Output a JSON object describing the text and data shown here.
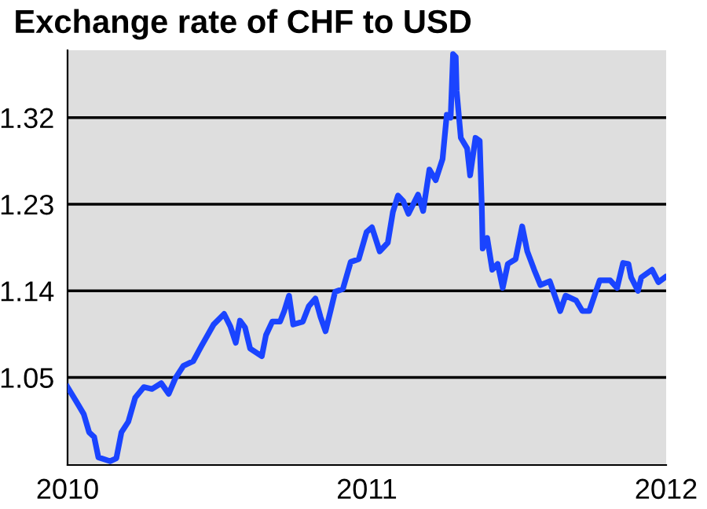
{
  "chart_data": {
    "type": "line",
    "title": "Exchange rate of CHF to USD",
    "color": "#1a44ff",
    "grid": "y",
    "marker": "none",
    "line_style": "solid",
    "x": [
      2010.0,
      2010.037,
      2010.054,
      2010.072,
      2010.089,
      2010.103,
      2010.142,
      2010.163,
      2010.18,
      2010.203,
      2010.226,
      2010.255,
      2010.282,
      2010.313,
      2010.338,
      2010.36,
      2010.387,
      2010.42,
      2010.448,
      2010.488,
      2010.523,
      2010.544,
      2010.562,
      2010.576,
      2010.593,
      2010.61,
      2010.649,
      2010.663,
      2010.684,
      2010.71,
      2010.724,
      2010.74,
      2010.754,
      2010.786,
      2010.806,
      2010.828,
      2010.845,
      2010.862,
      2010.88,
      2010.894,
      2010.92,
      2010.946,
      2010.973,
      2010.999,
      2011.017,
      2011.043,
      2011.07,
      2011.087,
      2011.104,
      2011.122,
      2011.139,
      2011.171,
      2011.188,
      2011.209,
      2011.23,
      2011.253,
      2011.267,
      2011.28,
      2011.288,
      2011.297,
      2011.3,
      2011.314,
      2011.335,
      2011.345,
      2011.363,
      2011.377,
      2011.384,
      2011.387,
      2011.402,
      2011.419,
      2011.437,
      2011.454,
      2011.471,
      2011.497,
      2011.519,
      2011.536,
      2011.559,
      2011.58,
      2011.611,
      2011.646,
      2011.664,
      2011.699,
      2011.72,
      2011.743,
      2011.778,
      2011.813,
      2011.836,
      2011.856,
      2011.874,
      2011.883,
      2011.906,
      2011.917,
      2011.953,
      2011.974,
      2011.996
    ],
    "values": [
      1.04,
      1.021,
      1.012,
      0.993,
      0.988,
      0.967,
      0.963,
      0.966,
      0.993,
      1.004,
      1.029,
      1.04,
      1.038,
      1.044,
      1.033,
      1.049,
      1.062,
      1.067,
      1.083,
      1.105,
      1.116,
      1.103,
      1.086,
      1.109,
      1.102,
      1.08,
      1.072,
      1.094,
      1.108,
      1.108,
      1.119,
      1.135,
      1.105,
      1.108,
      1.124,
      1.132,
      1.113,
      1.098,
      1.121,
      1.139,
      1.142,
      1.17,
      1.173,
      1.201,
      1.206,
      1.181,
      1.19,
      1.222,
      1.239,
      1.233,
      1.22,
      1.24,
      1.223,
      1.266,
      1.255,
      1.277,
      1.323,
      1.32,
      1.386,
      1.383,
      1.348,
      1.299,
      1.288,
      1.26,
      1.299,
      1.296,
      1.228,
      1.184,
      1.195,
      1.162,
      1.168,
      1.143,
      1.168,
      1.173,
      1.207,
      1.181,
      1.162,
      1.146,
      1.15,
      1.119,
      1.135,
      1.13,
      1.119,
      1.119,
      1.151,
      1.151,
      1.143,
      1.169,
      1.168,
      1.154,
      1.14,
      1.154,
      1.162,
      1.149,
      1.154
    ],
    "xlim": [
      2010,
      2012
    ],
    "xticks": [
      2010,
      2011,
      2012
    ],
    "ylim": [
      0.959,
      1.39
    ],
    "yticks": [
      1.05,
      1.14,
      1.23,
      1.32
    ]
  }
}
